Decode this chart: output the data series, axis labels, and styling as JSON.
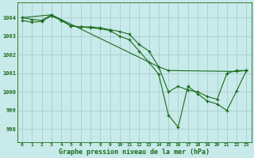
{
  "title": "Graphe pression niveau de la mer (hPa)",
  "bg_color": "#c8eaea",
  "grid_color": "#a0c8c8",
  "line_color": "#1a6b1a",
  "marker": "+",
  "xlim": [
    -0.5,
    23.5
  ],
  "ylim": [
    997.3,
    1004.8
  ],
  "yticks": [
    998,
    999,
    1000,
    1001,
    1002,
    1003,
    1004
  ],
  "xticks": [
    0,
    1,
    2,
    3,
    4,
    5,
    6,
    7,
    8,
    9,
    10,
    11,
    12,
    13,
    14,
    15,
    16,
    17,
    18,
    19,
    20,
    21,
    22,
    23
  ],
  "series1": {
    "x": [
      0,
      1,
      2,
      3,
      4,
      5,
      6,
      7,
      8,
      9,
      10,
      11,
      12,
      13,
      14,
      15,
      16,
      17,
      18,
      19,
      20,
      21,
      22,
      23
    ],
    "y": [
      1004.0,
      1003.9,
      1003.85,
      1004.15,
      1003.85,
      1003.55,
      1003.5,
      1003.5,
      1003.45,
      1003.35,
      1003.25,
      1003.1,
      1002.55,
      1002.2,
      1001.35,
      1000.0,
      1000.3,
      1000.1,
      1000.0,
      999.75,
      999.6,
      1001.0,
      1001.15,
      1001.15
    ]
  },
  "series2": {
    "x": [
      0,
      1,
      2,
      3,
      4,
      5,
      6,
      7,
      8,
      9,
      10,
      11,
      12,
      13,
      14,
      15,
      16,
      17,
      18,
      19,
      20,
      21,
      22,
      23
    ],
    "y": [
      1003.85,
      1003.75,
      1003.8,
      1004.1,
      1003.85,
      1003.55,
      1003.5,
      1003.45,
      1003.4,
      1003.3,
      1003.0,
      1002.8,
      1002.2,
      1001.6,
      1000.95,
      998.75,
      998.1,
      1000.3,
      999.9,
      999.5,
      999.35,
      999.0,
      1000.05,
      1001.15
    ]
  },
  "series3": {
    "x": [
      0,
      3,
      14,
      15,
      22,
      23
    ],
    "y": [
      1004.0,
      1004.15,
      1001.35,
      1001.15,
      1001.1,
      1001.15
    ]
  }
}
